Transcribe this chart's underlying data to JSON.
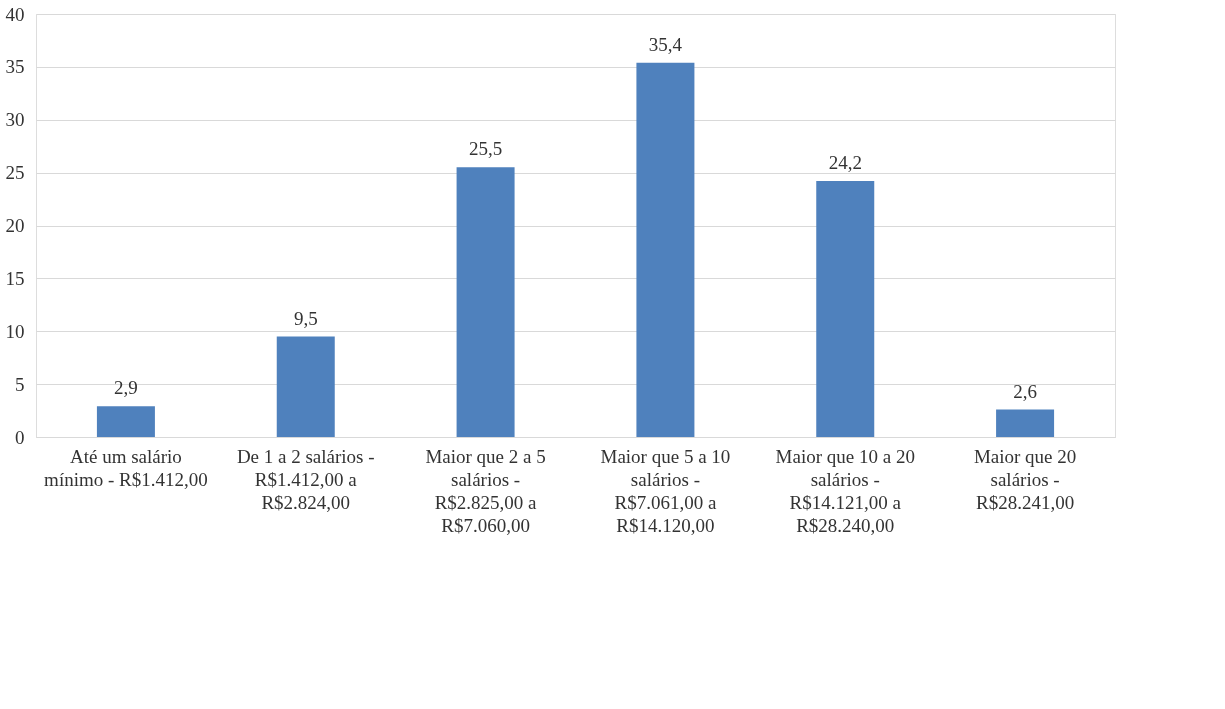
{
  "chart_data": {
    "type": "bar",
    "categories": [
      "Até um salário mínimo - R$1.412,00",
      "De 1 a 2 salários - R$1.412,00 a R$2.824,00",
      "Maior que 2 a 5 salários - R$2.825,00 a R$7.060,00",
      "Maior que 5 a 10 salários - R$7.061,00 a R$14.120,00",
      "Maior que 10 a 20 salários - R$14.121,00 a R$28.240,00",
      "Maior que 20 salários - R$28.241,00"
    ],
    "values": [
      2.9,
      9.5,
      25.5,
      35.4,
      24.2,
      2.6
    ],
    "value_labels": [
      "2,9",
      "9,5",
      "25,5",
      "35,4",
      "24,2",
      "2,6"
    ],
    "color": "#4f81bd",
    "ylim": [
      0,
      40
    ],
    "yticks": [
      0,
      5,
      10,
      15,
      20,
      25,
      30,
      35,
      40
    ],
    "grid": "y"
  }
}
